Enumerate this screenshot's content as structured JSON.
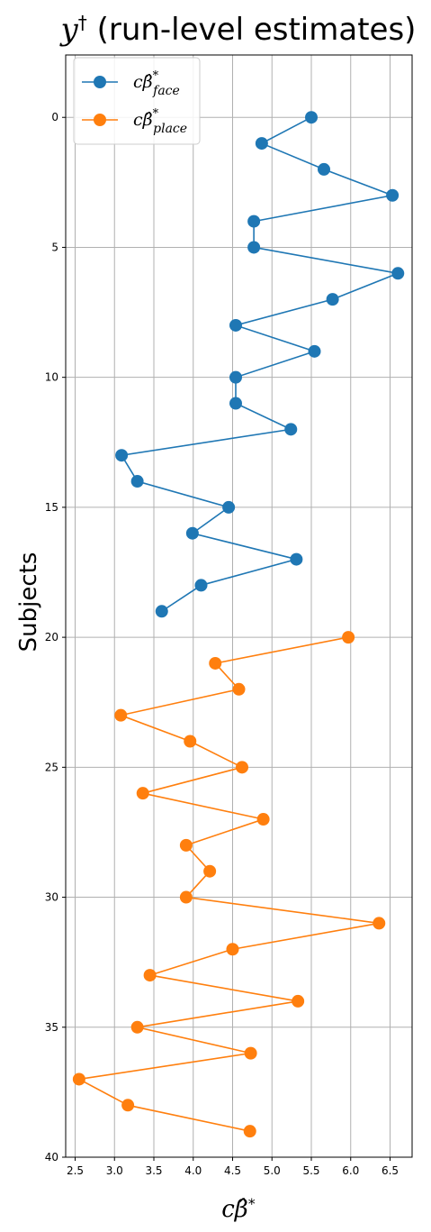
{
  "chart_data": {
    "type": "line",
    "title": "y† (run-level estimates)",
    "xlabel": "cβ̂*",
    "ylabel": "Subjects",
    "xlim": [
      2.38,
      6.78
    ],
    "ylim": [
      40,
      -2.4
    ],
    "y_inverted": true,
    "xticks": [
      2.5,
      3.0,
      3.5,
      4.0,
      4.5,
      5.0,
      5.5,
      6.0,
      6.5
    ],
    "xtick_labels": [
      "2.5",
      "3.0",
      "3.5",
      "4.0",
      "4.5",
      "5.0",
      "5.5",
      "6.0",
      "6.5"
    ],
    "yticks": [
      0,
      5,
      10,
      15,
      20,
      25,
      30,
      35,
      40
    ],
    "ytick_labels": [
      "0",
      "5",
      "10",
      "15",
      "20",
      "25",
      "30",
      "35",
      "40"
    ],
    "grid": true,
    "legend_position": "upper-left",
    "series": [
      {
        "name": "cβ̂*face",
        "legend_base": "cβ̂",
        "legend_sup": "*",
        "legend_sub": "face",
        "color": "#1f77b4",
        "points": [
          {
            "subject": 0,
            "value": 5.5
          },
          {
            "subject": 1,
            "value": 4.87
          },
          {
            "subject": 2,
            "value": 5.66
          },
          {
            "subject": 3,
            "value": 6.53
          },
          {
            "subject": 4,
            "value": 4.77
          },
          {
            "subject": 5,
            "value": 4.77
          },
          {
            "subject": 6,
            "value": 6.6
          },
          {
            "subject": 7,
            "value": 5.77
          },
          {
            "subject": 8,
            "value": 4.54
          },
          {
            "subject": 9,
            "value": 5.54
          },
          {
            "subject": 10,
            "value": 4.54
          },
          {
            "subject": 11,
            "value": 4.54
          },
          {
            "subject": 12,
            "value": 5.24
          },
          {
            "subject": 13,
            "value": 3.09
          },
          {
            "subject": 14,
            "value": 3.29
          },
          {
            "subject": 15,
            "value": 4.45
          },
          {
            "subject": 16,
            "value": 3.99
          },
          {
            "subject": 17,
            "value": 5.31
          },
          {
            "subject": 18,
            "value": 4.1
          },
          {
            "subject": 19,
            "value": 3.6
          }
        ]
      },
      {
        "name": "cβ̂*place",
        "legend_base": "cβ̂",
        "legend_sup": "*",
        "legend_sub": "place",
        "color": "#ff7f0e",
        "points": [
          {
            "subject": 20,
            "value": 5.97
          },
          {
            "subject": 21,
            "value": 4.28
          },
          {
            "subject": 22,
            "value": 4.58
          },
          {
            "subject": 23,
            "value": 3.08
          },
          {
            "subject": 24,
            "value": 3.96
          },
          {
            "subject": 25,
            "value": 4.62
          },
          {
            "subject": 26,
            "value": 3.36
          },
          {
            "subject": 27,
            "value": 4.89
          },
          {
            "subject": 28,
            "value": 3.91
          },
          {
            "subject": 29,
            "value": 4.21
          },
          {
            "subject": 30,
            "value": 3.91
          },
          {
            "subject": 31,
            "value": 6.36
          },
          {
            "subject": 32,
            "value": 4.5
          },
          {
            "subject": 33,
            "value": 3.45
          },
          {
            "subject": 34,
            "value": 5.33
          },
          {
            "subject": 35,
            "value": 3.29
          },
          {
            "subject": 36,
            "value": 4.73
          },
          {
            "subject": 37,
            "value": 2.55
          },
          {
            "subject": 38,
            "value": 3.17
          },
          {
            "subject": 39,
            "value": 4.72
          }
        ]
      }
    ]
  }
}
